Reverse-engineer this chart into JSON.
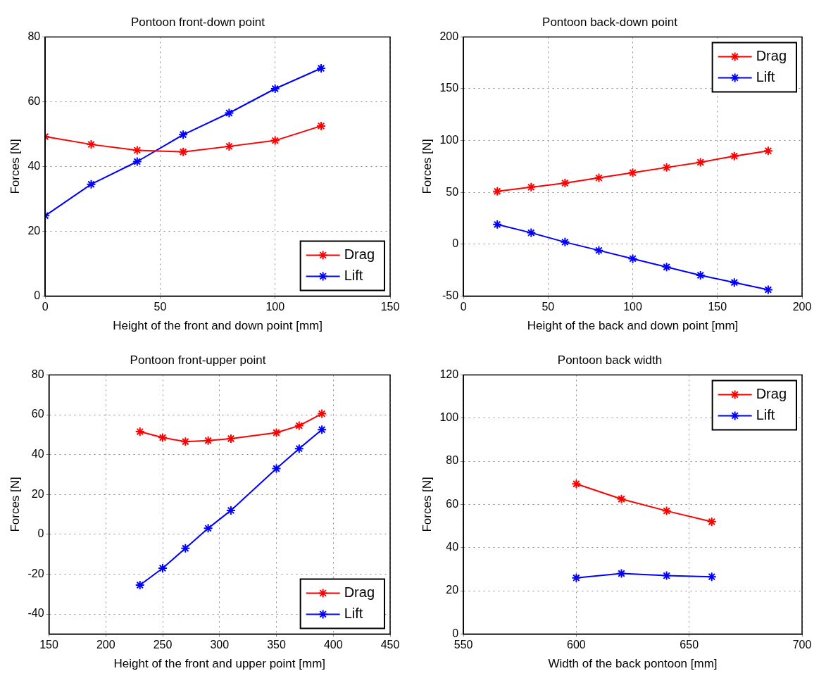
{
  "chart_data": [
    {
      "type": "line",
      "title": "Pontoon front-down point",
      "xlabel": "Height of the front and down point [mm]",
      "ylabel": "Forces [N]",
      "x": [
        0,
        20,
        40,
        60,
        80,
        100,
        120
      ],
      "series": [
        {
          "name": "Drag",
          "color": "#ff0000",
          "values": [
            49.2,
            46.8,
            45,
            44.5,
            46.2,
            48,
            52.5
          ]
        },
        {
          "name": "Lift",
          "color": "#0000ff",
          "values": [
            24.8,
            34.5,
            41.5,
            49.8,
            56.5,
            64,
            70.3
          ]
        }
      ],
      "xlim": [
        0,
        150
      ],
      "xticks": [
        0,
        50,
        100,
        150
      ],
      "ylim": [
        0,
        80
      ],
      "yticks": [
        0,
        20,
        40,
        60,
        80
      ],
      "grid": true,
      "legend": "bottom right",
      "marker": "cross",
      "line_style": "solid"
    },
    {
      "type": "line",
      "title": "Pontoon back-down point",
      "xlabel": "Height of the back and down point [mm]",
      "ylabel": "Forces [N]",
      "x": [
        20,
        40,
        60,
        80,
        100,
        120,
        140,
        160,
        180
      ],
      "series": [
        {
          "name": "Drag",
          "color": "#ff0000",
          "values": [
            51,
            55,
            59,
            64,
            69,
            74,
            79,
            85,
            90
          ]
        },
        {
          "name": "Lift",
          "color": "#0000ff",
          "values": [
            19,
            11,
            2,
            -6,
            -14,
            -22,
            -30,
            -37,
            -44
          ]
        }
      ],
      "xlim": [
        0,
        200
      ],
      "xticks": [
        0,
        50,
        100,
        150,
        200
      ],
      "ylim": [
        -50,
        200
      ],
      "yticks": [
        -50,
        0,
        50,
        100,
        150,
        200
      ],
      "grid": true,
      "legend": "top right",
      "marker": "cross",
      "line_style": "solid"
    },
    {
      "type": "line",
      "title": "Pontoon front-upper point",
      "xlabel": "Height of the front and upper point [mm]",
      "ylabel": "Forces [N]",
      "x": [
        230,
        250,
        270,
        290,
        310,
        350,
        370,
        390
      ],
      "series": [
        {
          "name": "Drag",
          "color": "#ff0000",
          "values": [
            51.5,
            48.5,
            46.5,
            47,
            48,
            51,
            54.5,
            60.5
          ]
        },
        {
          "name": "Lift",
          "color": "#0000ff",
          "values": [
            -25.5,
            -17,
            -7,
            3,
            12,
            33,
            43,
            52.5
          ]
        }
      ],
      "xlim": [
        150,
        450
      ],
      "xticks": [
        150,
        200,
        250,
        300,
        350,
        400,
        450
      ],
      "ylim": [
        -50,
        80
      ],
      "yticks": [
        -40,
        -20,
        0,
        20,
        40,
        60,
        80
      ],
      "grid": true,
      "legend": "bottom right",
      "marker": "cross",
      "line_style": "solid"
    },
    {
      "type": "line",
      "title": "Pontoon back width",
      "xlabel": "Width of the back pontoon [mm]",
      "ylabel": "Forces [N]",
      "x": [
        600,
        620,
        640,
        660
      ],
      "series": [
        {
          "name": "Drag",
          "color": "#ff0000",
          "values": [
            69.5,
            62.5,
            57,
            52
          ]
        },
        {
          "name": "Lift",
          "color": "#0000ff",
          "values": [
            26,
            28,
            27,
            26.5
          ]
        }
      ],
      "xlim": [
        550,
        700
      ],
      "xticks": [
        550,
        600,
        650,
        700
      ],
      "ylim": [
        0,
        120
      ],
      "yticks": [
        0,
        20,
        40,
        60,
        80,
        100,
        120
      ],
      "grid": true,
      "legend": "top right",
      "marker": "cross",
      "line_style": "solid"
    }
  ]
}
